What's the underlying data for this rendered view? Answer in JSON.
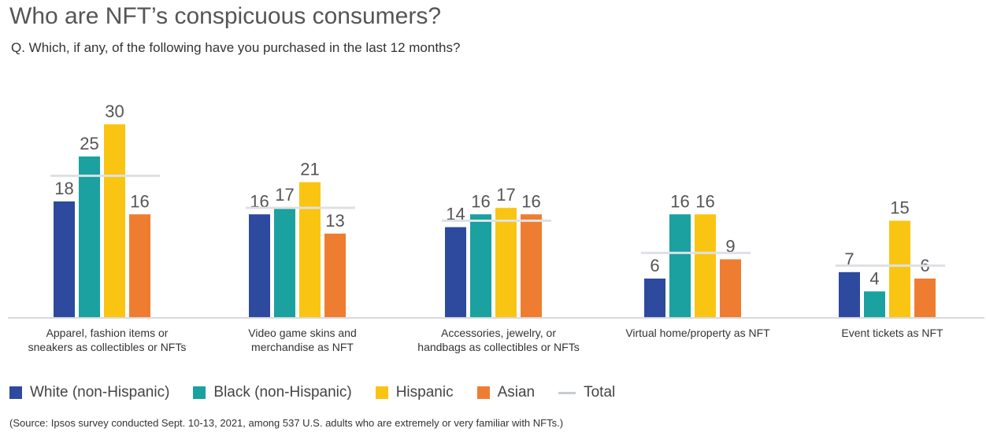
{
  "chart_data": {
    "type": "bar",
    "title": "Who are NFT’s conspicuous consumers?",
    "subtitle": "Q. Which, if any, of the following have you purchased in the last 12 months?",
    "categories": [
      [
        "Apparel, fashion items or",
        "sneakers as collectibles or NFTs"
      ],
      [
        "Video game skins and",
        "merchandise as NFT"
      ],
      [
        "Accessories, jewelry, or",
        "handbags as collectibles or NFTs"
      ],
      [
        "Virtual home/property as NFT"
      ],
      [
        "Event tickets as NFT"
      ]
    ],
    "series": [
      {
        "name": "White (non-Hispanic)",
        "color": "#2e4a9e",
        "values": [
          18,
          16,
          14,
          6,
          7
        ]
      },
      {
        "name": "Black (non-Hispanic)",
        "color": "#1aa1a0",
        "values": [
          25,
          17,
          16,
          16,
          4
        ]
      },
      {
        "name": "Hispanic",
        "color": "#f9c512",
        "values": [
          30,
          21,
          17,
          16,
          15
        ]
      },
      {
        "name": "Asian",
        "color": "#ef7d31",
        "values": [
          16,
          13,
          16,
          9,
          6
        ]
      }
    ],
    "total": {
      "name": "Total",
      "color": "#dde1e5",
      "values": [
        22,
        17,
        15,
        10,
        8
      ]
    },
    "ylim": [
      0,
      30
    ],
    "grid": false,
    "legend_position": "bottom",
    "source": "(Source: Ipsos survey conducted Sept. 10-13, 2021, among 537 U.S. adults who are extremely or very familiar with NFTs.)"
  }
}
